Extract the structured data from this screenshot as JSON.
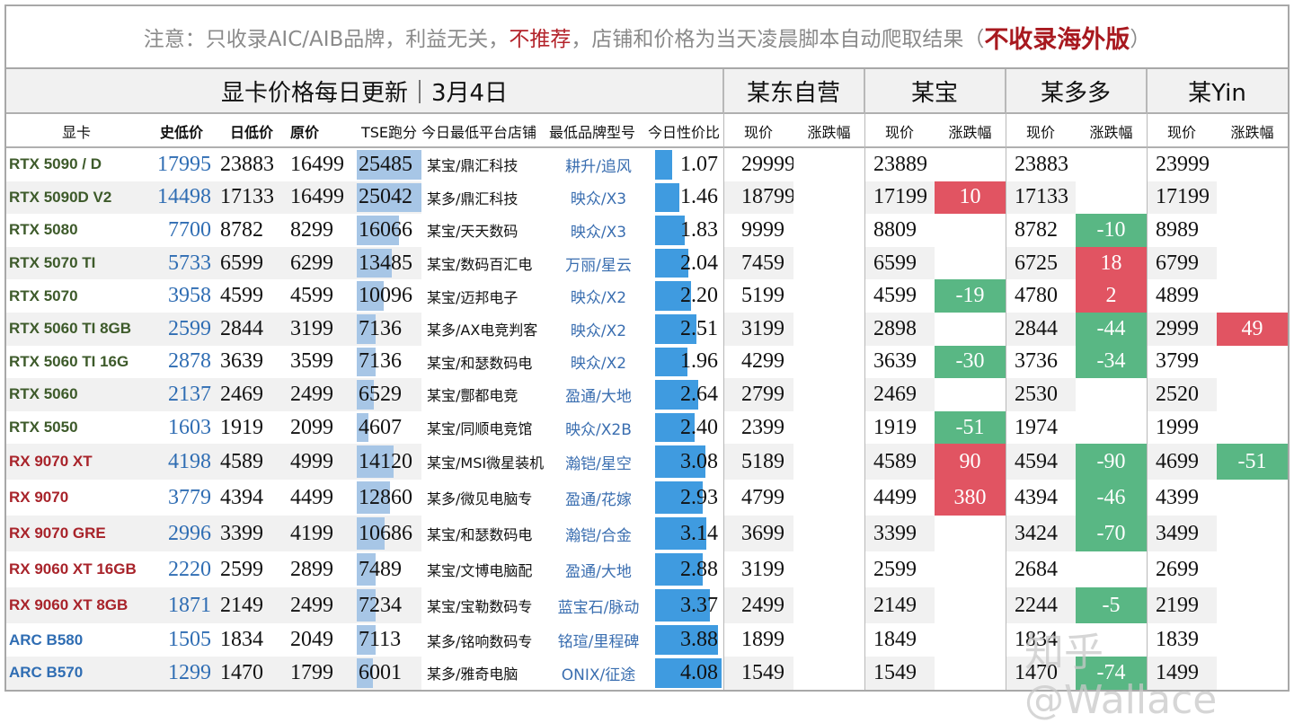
{
  "notice": {
    "part1": "注意：只收录AIC/AIB品牌，利益无关，",
    "part2": "不推荐",
    "part3": "，店铺和价格为当天凌晨脚本自动爬取结果（",
    "part4": "不收录海外版",
    "part5": "）"
  },
  "header": {
    "title": "显卡价格每日更新｜3月4日",
    "platforms": [
      "某东自营",
      "某宝",
      "某多多",
      "某Yin"
    ]
  },
  "columns": {
    "card": "显卡",
    "hist_low": "史低价",
    "day_low": "日低价",
    "msrp": "原价",
    "tse": "TSE跑分",
    "shop": "今日最低平台店铺",
    "model": "最低品牌型号",
    "ratio": "今日性价比",
    "price": "现价",
    "change": "涨跌幅"
  },
  "colors": {
    "nvidia": "#3d5a2a",
    "amd": "#a8232a",
    "intel": "#2f6db3",
    "up": "#e15462",
    "down": "#59b784",
    "tse_bar": "#a7c6e6",
    "ratio_bar": "#3f9be0"
  },
  "rows": [
    {
      "name": "RTX 5090 / D",
      "vendor": "nvidia",
      "hist": "17995",
      "day": "23883",
      "msrp": "16499",
      "tse": "25485",
      "tse_pct": 100,
      "shop": "某宝/鼎汇科技",
      "model": "耕升/追风",
      "ratio": "1.07",
      "ratio_pct": 26,
      "jd": "29999",
      "jd_chg": "",
      "tb": "23889",
      "tb_chg": "",
      "pdd": "23883",
      "pdd_chg": "",
      "dy": "23999",
      "dy_chg": ""
    },
    {
      "name": "RTX 5090D V2",
      "vendor": "nvidia",
      "hist": "14498",
      "day": "17133",
      "msrp": "16499",
      "tse": "25042",
      "tse_pct": 99,
      "shop": "某多/鼎汇科技",
      "model": "映众/X3",
      "ratio": "1.46",
      "ratio_pct": 36,
      "jd": "18799",
      "jd_chg": "",
      "tb": "17199",
      "tb_chg": "10",
      "pdd": "17133",
      "pdd_chg": "",
      "dy": "17199",
      "dy_chg": ""
    },
    {
      "name": "RTX 5080",
      "vendor": "nvidia",
      "hist": "7700",
      "day": "8782",
      "msrp": "8299",
      "tse": "16066",
      "tse_pct": 63,
      "shop": "某宝/天天数码",
      "model": "映众/X3",
      "ratio": "1.83",
      "ratio_pct": 45,
      "jd": "9999",
      "jd_chg": "",
      "tb": "8809",
      "tb_chg": "",
      "pdd": "8782",
      "pdd_chg": "-10",
      "dy": "8989",
      "dy_chg": ""
    },
    {
      "name": "RTX 5070 TI",
      "vendor": "nvidia",
      "hist": "5733",
      "day": "6599",
      "msrp": "6299",
      "tse": "13485",
      "tse_pct": 53,
      "shop": "某宝/数码百汇电",
      "model": "万丽/星云",
      "ratio": "2.04",
      "ratio_pct": 50,
      "jd": "7459",
      "jd_chg": "",
      "tb": "6599",
      "tb_chg": "",
      "pdd": "6725",
      "pdd_chg": "18",
      "dy": "6799",
      "dy_chg": ""
    },
    {
      "name": "RTX 5070",
      "vendor": "nvidia",
      "hist": "3958",
      "day": "4599",
      "msrp": "4599",
      "tse": "10096",
      "tse_pct": 40,
      "shop": "某宝/迈邦电子",
      "model": "映众/X2",
      "ratio": "2.20",
      "ratio_pct": 54,
      "jd": "5199",
      "jd_chg": "",
      "tb": "4599",
      "tb_chg": "-19",
      "pdd": "4780",
      "pdd_chg": "2",
      "dy": "4899",
      "dy_chg": ""
    },
    {
      "name": "RTX 5060 TI 8GB",
      "vendor": "nvidia",
      "hist": "2599",
      "day": "2844",
      "msrp": "3199",
      "tse": "7136",
      "tse_pct": 28,
      "shop": "某多/AX电竞判客",
      "model": "映众/X2",
      "ratio": "2.51",
      "ratio_pct": 62,
      "jd": "3199",
      "jd_chg": "",
      "tb": "2898",
      "tb_chg": "",
      "pdd": "2844",
      "pdd_chg": "-44",
      "dy": "2999",
      "dy_chg": "49"
    },
    {
      "name": "RTX 5060 TI 16G",
      "vendor": "nvidia",
      "hist": "2878",
      "day": "3639",
      "msrp": "3599",
      "tse": "7136",
      "tse_pct": 28,
      "shop": "某宝/和瑟数码电",
      "model": "映众/X2",
      "ratio": "1.96",
      "ratio_pct": 48,
      "jd": "4299",
      "jd_chg": "",
      "tb": "3639",
      "tb_chg": "-30",
      "pdd": "3736",
      "pdd_chg": "-34",
      "dy": "3799",
      "dy_chg": ""
    },
    {
      "name": "RTX 5060",
      "vendor": "nvidia",
      "hist": "2137",
      "day": "2469",
      "msrp": "2499",
      "tse": "6529",
      "tse_pct": 26,
      "shop": "某宝/酆都电竞",
      "model": "盈通/大地",
      "ratio": "2.64",
      "ratio_pct": 65,
      "jd": "2799",
      "jd_chg": "",
      "tb": "2469",
      "tb_chg": "",
      "pdd": "2530",
      "pdd_chg": "",
      "dy": "2520",
      "dy_chg": ""
    },
    {
      "name": "RTX 5050",
      "vendor": "nvidia",
      "hist": "1603",
      "day": "1919",
      "msrp": "2099",
      "tse": "4607",
      "tse_pct": 18,
      "shop": "某宝/同顺电竞馆",
      "model": "映众/X2B",
      "ratio": "2.40",
      "ratio_pct": 59,
      "jd": "2399",
      "jd_chg": "",
      "tb": "1919",
      "tb_chg": "-51",
      "pdd": "1974",
      "pdd_chg": "",
      "dy": "1999",
      "dy_chg": ""
    },
    {
      "name": "RX 9070 XT",
      "vendor": "amd",
      "hist": "4198",
      "day": "4589",
      "msrp": "4999",
      "tse": "14120",
      "tse_pct": 55,
      "shop": "某宝/MSI微星装机",
      "model": "瀚铠/星空",
      "ratio": "3.08",
      "ratio_pct": 75,
      "jd": "5189",
      "jd_chg": "",
      "tb": "4589",
      "tb_chg": "90",
      "pdd": "4594",
      "pdd_chg": "-90",
      "dy": "4699",
      "dy_chg": "-51"
    },
    {
      "name": "RX 9070",
      "vendor": "amd",
      "hist": "3779",
      "day": "4394",
      "msrp": "4499",
      "tse": "12860",
      "tse_pct": 50,
      "shop": "某多/微见电脑专",
      "model": "盈通/花嫁",
      "ratio": "2.93",
      "ratio_pct": 72,
      "jd": "4799",
      "jd_chg": "",
      "tb": "4499",
      "tb_chg": "380",
      "pdd": "4394",
      "pdd_chg": "-46",
      "dy": "4399",
      "dy_chg": ""
    },
    {
      "name": "RX 9070 GRE",
      "vendor": "amd",
      "hist": "2996",
      "day": "3399",
      "msrp": "4199",
      "tse": "10686",
      "tse_pct": 42,
      "shop": "某宝/和瑟数码电",
      "model": "瀚铠/合金",
      "ratio": "3.14",
      "ratio_pct": 77,
      "jd": "3699",
      "jd_chg": "",
      "tb": "3399",
      "tb_chg": "",
      "pdd": "3424",
      "pdd_chg": "-70",
      "dy": "3499",
      "dy_chg": ""
    },
    {
      "name": "RX 9060 XT 16GB",
      "vendor": "amd",
      "hist": "2220",
      "day": "2599",
      "msrp": "2899",
      "tse": "7489",
      "tse_pct": 29,
      "shop": "某宝/文博电脑配",
      "model": "盈通/大地",
      "ratio": "2.88",
      "ratio_pct": 71,
      "jd": "3199",
      "jd_chg": "",
      "tb": "2599",
      "tb_chg": "",
      "pdd": "2684",
      "pdd_chg": "",
      "dy": "2699",
      "dy_chg": ""
    },
    {
      "name": "RX 9060 XT 8GB",
      "vendor": "amd",
      "hist": "1871",
      "day": "2149",
      "msrp": "2499",
      "tse": "7234",
      "tse_pct": 28,
      "shop": "某宝/宝勒数码专",
      "model": "蓝宝石/脉动",
      "ratio": "3.37",
      "ratio_pct": 83,
      "jd": "2499",
      "jd_chg": "",
      "tb": "2149",
      "tb_chg": "",
      "pdd": "2244",
      "pdd_chg": "-5",
      "dy": "2199",
      "dy_chg": ""
    },
    {
      "name": "ARC B580",
      "vendor": "intel",
      "hist": "1505",
      "day": "1834",
      "msrp": "2049",
      "tse": "7113",
      "tse_pct": 28,
      "shop": "某多/铭响数码专",
      "model": "铭瑄/里程碑",
      "ratio": "3.88",
      "ratio_pct": 95,
      "jd": "1899",
      "jd_chg": "",
      "tb": "1849",
      "tb_chg": "",
      "pdd": "1834",
      "pdd_chg": "",
      "dy": "1839",
      "dy_chg": ""
    },
    {
      "name": "ARC B570",
      "vendor": "intel",
      "hist": "1299",
      "day": "1470",
      "msrp": "1799",
      "tse": "6001",
      "tse_pct": 24,
      "shop": "某多/雅奇电脑",
      "model": "ONIX/征途",
      "ratio": "4.08",
      "ratio_pct": 100,
      "jd": "1549",
      "jd_chg": "",
      "tb": "1549",
      "tb_chg": "",
      "pdd": "1470",
      "pdd_chg": "-74",
      "dy": "1499",
      "dy_chg": ""
    }
  ],
  "watermark": "知乎 @Wallace"
}
